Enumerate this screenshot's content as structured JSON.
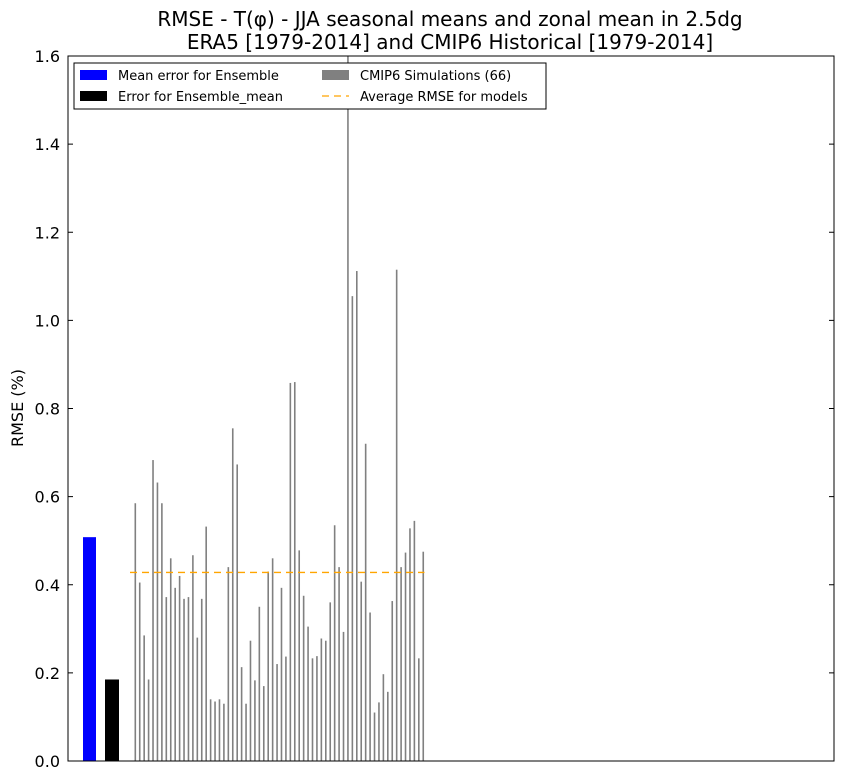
{
  "chart_data": {
    "type": "bar",
    "title": [
      "RMSE - T(φ) - JJA seasonal means and zonal mean in 2.5dg",
      "ERA5 [1979-2014] and CMIP6 Historical [1979-2014]"
    ],
    "ylabel": "RMSE (%)",
    "xlabel": "",
    "ylim": [
      0,
      1.6
    ],
    "yticks": [
      "0.0",
      "0.2",
      "0.4",
      "0.6",
      "0.8",
      "1.0",
      "1.2",
      "1.4",
      "1.6"
    ],
    "grid": false,
    "legend_placement": "top-left",
    "legend": [
      {
        "label": "Mean error for Ensemble",
        "color": "#0000ff",
        "kind": "patch"
      },
      {
        "label": "Error for Ensemble_mean",
        "color": "#000000",
        "kind": "patch"
      },
      {
        "label": "CMIP6 Simulations (66)",
        "color": "#808080",
        "kind": "patch"
      },
      {
        "label": "Average RMSE for models",
        "color": "#ffa500",
        "kind": "dashed-line"
      }
    ],
    "series": [
      {
        "name": "Mean error for Ensemble",
        "color": "#0000ff",
        "values": [
          0.508
        ]
      },
      {
        "name": "Error for Ensemble_mean",
        "color": "#000000",
        "values": [
          0.185
        ]
      },
      {
        "name": "CMIP6 Simulations (66)",
        "color": "#808080",
        "values": [
          0.585,
          0.405,
          0.285,
          0.185,
          0.683,
          0.632,
          0.585,
          0.372,
          0.46,
          0.393,
          0.42,
          0.368,
          0.372,
          0.467,
          0.28,
          0.368,
          0.532,
          0.14,
          0.135,
          0.14,
          0.13,
          0.44,
          0.755,
          0.673,
          0.213,
          0.13,
          0.273,
          0.183,
          0.35,
          0.17,
          0.43,
          0.46,
          0.22,
          0.393,
          0.237,
          0.858,
          0.86,
          0.478,
          0.375,
          0.305,
          0.233,
          0.238,
          0.278,
          0.273,
          0.36,
          0.535,
          0.44,
          0.293,
          1.6,
          1.055,
          1.112,
          0.407,
          0.72,
          0.337,
          0.11,
          0.133,
          0.197,
          0.157,
          0.363,
          1.115,
          0.44,
          0.473,
          0.528,
          0.545,
          0.233,
          0.475
        ]
      },
      {
        "name": "Average RMSE for models",
        "color": "#ffa500",
        "values": [
          0.428
        ]
      }
    ]
  }
}
